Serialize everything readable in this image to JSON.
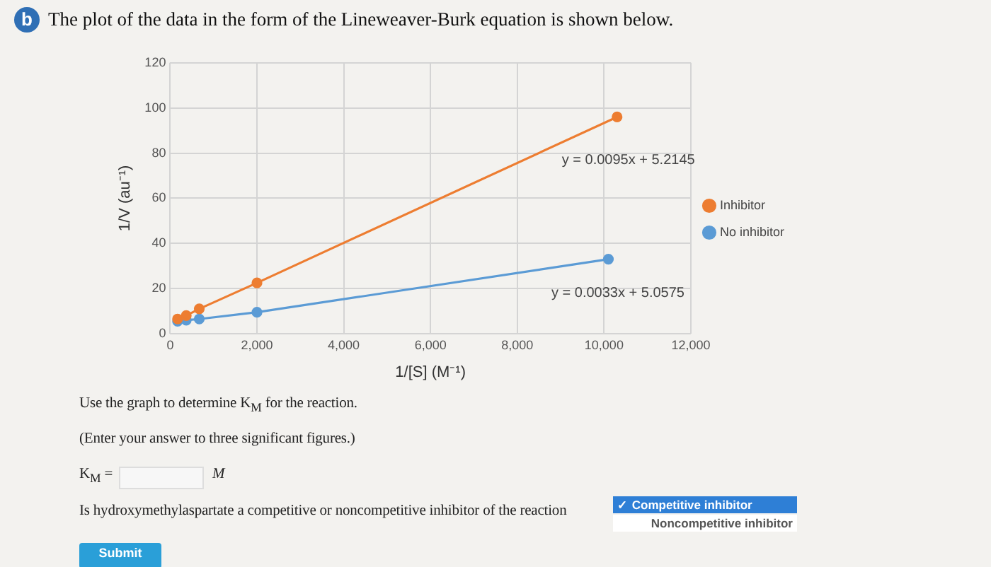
{
  "chart_data": {
    "type": "line",
    "title": "The plot of the data in the form of the Lineweaver-Burk equation is shown below.",
    "xlabel": "1/[S] (M⁻¹)",
    "ylabel": "1/V (au⁻¹)",
    "series": [
      {
        "name": "Inhibitor",
        "color": "#ed7d31",
        "x": [
          170,
          370,
          670,
          2000,
          10300
        ],
        "values": [
          6.5,
          8,
          11,
          22.5,
          96
        ]
      },
      {
        "name": "No inhibitor",
        "color": "#5b9bd5",
        "x": [
          170,
          370,
          670,
          2000,
          10100
        ],
        "values": [
          5.5,
          6,
          6.5,
          9.5,
          33
        ]
      }
    ],
    "xlim": [
      0,
      12000
    ],
    "xticks": [
      0,
      {
        "value": 2000,
        "label": "2,000"
      },
      {
        "value": 4000,
        "label": "4,000"
      },
      {
        "value": 6000,
        "label": "6,000"
      },
      {
        "value": 8000,
        "label": "8,000"
      },
      {
        "value": 10000,
        "label": "10,000"
      },
      {
        "value": 12000,
        "label": "12,000"
      }
    ],
    "ylim": [
      0,
      120
    ],
    "yticks": [
      0,
      20,
      40,
      60,
      80,
      100,
      120
    ],
    "grid": true,
    "legend": "right",
    "marker": "circle",
    "line_style": "solid",
    "annotations": [
      "y = 0.0095x + 5.2145",
      "y = 0.0033x + 5.0575",
      "b",
      "Use the graph to determine K$_{M}$ for the reaction.",
      "(Enter your answer to three significant figures.)",
      "K$_{M}$ =",
      "M",
      "Is hydroxymethylaspartate a competitive or noncompetitive inhibitor of the reaction",
      "✓ Competitive inhibitor",
      "Noncompetitive inhibitor",
      "Submit"
    ]
  }
}
